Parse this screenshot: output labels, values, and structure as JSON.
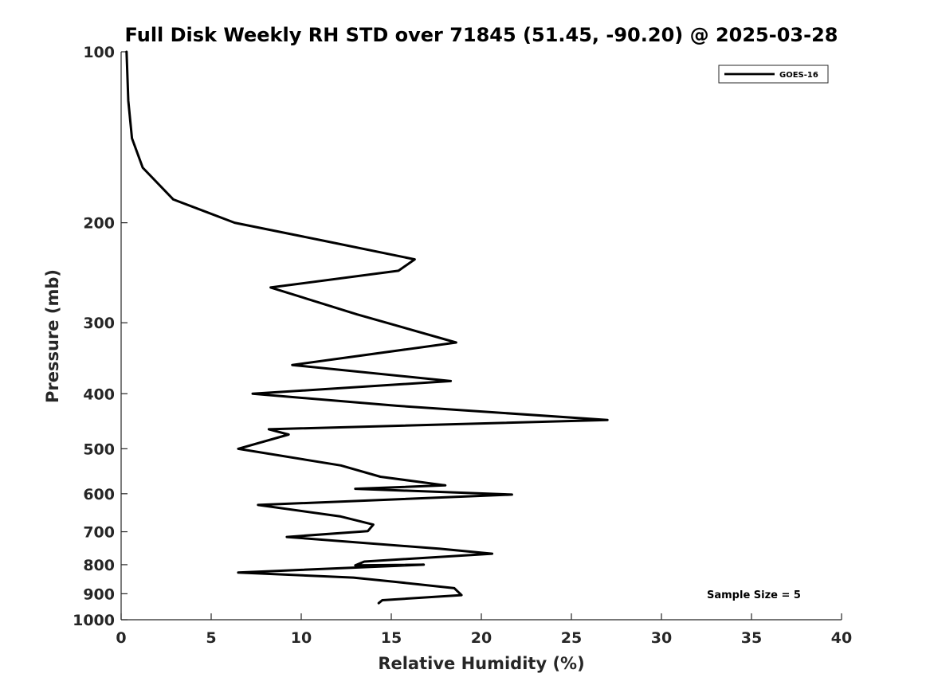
{
  "chart_data": {
    "type": "line",
    "title": "Full Disk Weekly RH STD over 71845 (51.45, -90.20) @ 2025-03-28",
    "xlabel": "Relative Humidity (%)",
    "ylabel": "Pressure (mb)",
    "xlim": [
      0,
      40
    ],
    "ylim": [
      1000,
      100
    ],
    "yscale": "log",
    "y_inverted": true,
    "xticks": [
      0,
      5,
      10,
      15,
      20,
      25,
      30,
      35,
      40
    ],
    "yticks": [
      100,
      200,
      300,
      400,
      500,
      600,
      700,
      800,
      900,
      1000
    ],
    "grid": false,
    "legend_position": "top-right",
    "series": [
      {
        "name": "GOES-16",
        "color": "#000000",
        "x": [
          0.3,
          0.4,
          0.6,
          1.2,
          2.9,
          6.3,
          11.2,
          16.3,
          15.4,
          8.3,
          13.1,
          18.6,
          9.5,
          18.3,
          7.3,
          15.3,
          27.0,
          8.2,
          9.3,
          6.5,
          12.2,
          14.4,
          18.0,
          13.0,
          21.7,
          7.6,
          12.2,
          14.0,
          13.7,
          9.2,
          17.7,
          20.6,
          13.5,
          13.0,
          16.8,
          6.5,
          12.9,
          15.3,
          18.5,
          18.9,
          14.5,
          14.3
        ],
        "y": [
          100,
          122,
          142,
          160,
          182,
          200,
          215,
          232,
          243,
          260,
          290,
          325,
          356,
          380,
          400,
          420,
          445,
          462,
          472,
          500,
          535,
          560,
          580,
          588,
          602,
          628,
          658,
          680,
          698,
          715,
          750,
          765,
          790,
          802,
          800,
          826,
          843,
          858,
          880,
          905,
          924,
          935
        ]
      }
    ],
    "annotations": [
      "Sample Size = 5"
    ]
  }
}
